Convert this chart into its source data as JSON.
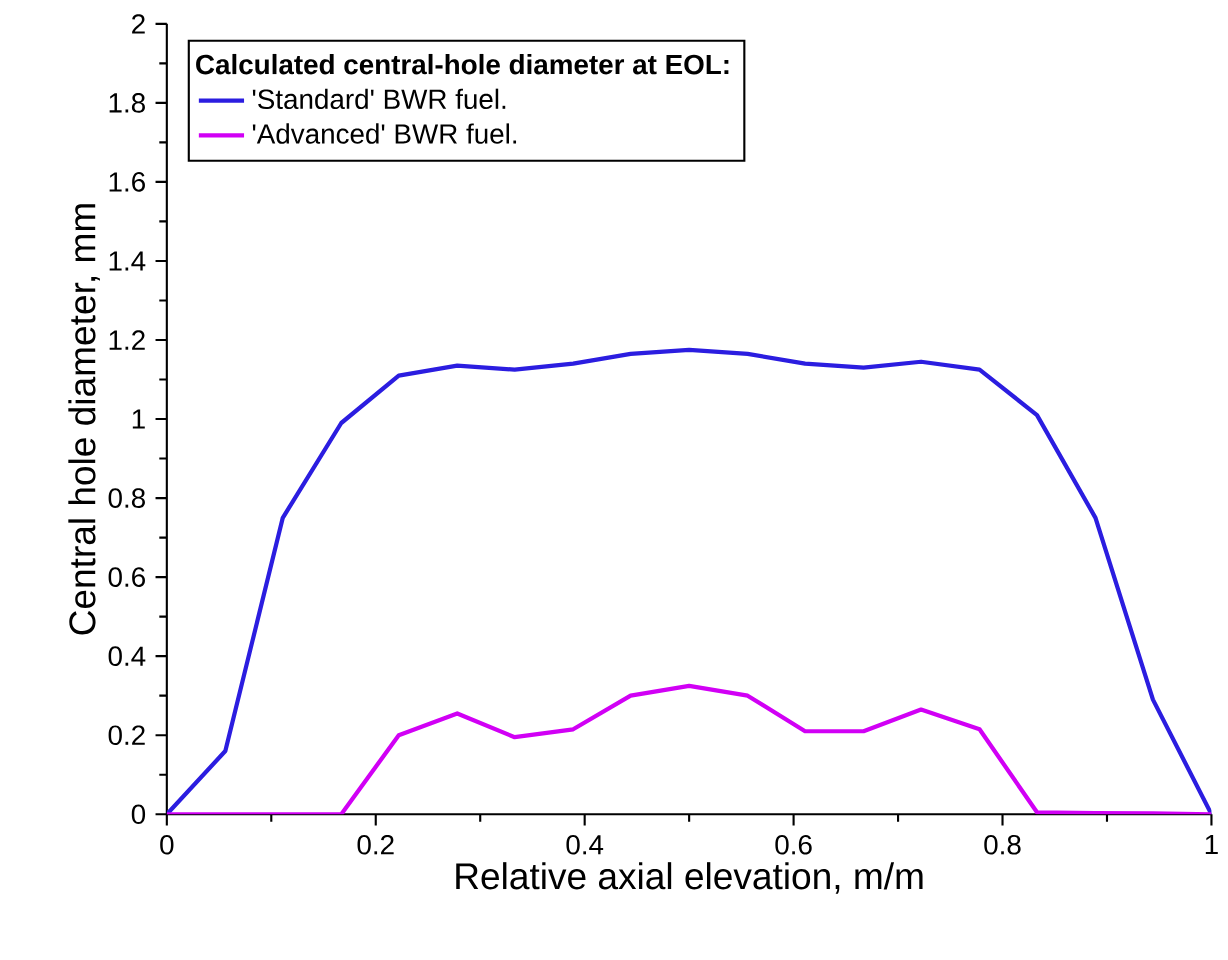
{
  "chart_data": {
    "type": "line",
    "xlabel": "Relative axial elevation, m/m",
    "ylabel": "Central hole diameter, mm",
    "legend_title": "Calculated central-hole diameter at EOL:",
    "legend": "top left",
    "marker": "none",
    "line_style": "solid",
    "grid": false,
    "x": [
      0,
      0.056,
      0.111,
      0.167,
      0.222,
      0.278,
      0.333,
      0.389,
      0.444,
      0.5,
      0.556,
      0.611,
      0.667,
      0.722,
      0.778,
      0.833,
      0.889,
      0.944,
      1
    ],
    "xlim": [
      0,
      1
    ],
    "xticks": [
      0,
      0.2,
      0.4,
      0.6,
      0.8,
      1
    ],
    "ylim": [
      0,
      2
    ],
    "yticks": [
      0,
      0.2,
      0.4,
      0.6,
      0.8,
      1,
      1.2,
      1.4,
      1.6,
      1.8,
      2
    ],
    "series": [
      {
        "name": "'Standard' BWR fuel.",
        "color": "#2b1de0",
        "values": [
          0,
          0.16,
          0.75,
          0.99,
          1.11,
          1.135,
          1.125,
          1.14,
          1.165,
          1.175,
          1.165,
          1.14,
          1.13,
          1.145,
          1.125,
          1.01,
          0.75,
          0.29,
          0
        ]
      },
      {
        "name": "'Advanced' BWR fuel.",
        "color": "#d100f5",
        "values": [
          0,
          0,
          0,
          0,
          0.2,
          0.255,
          0.195,
          0.215,
          0.3,
          0.325,
          0.3,
          0.21,
          0.21,
          0.265,
          0.215,
          0.005,
          0.003,
          0.002,
          0
        ]
      }
    ]
  }
}
